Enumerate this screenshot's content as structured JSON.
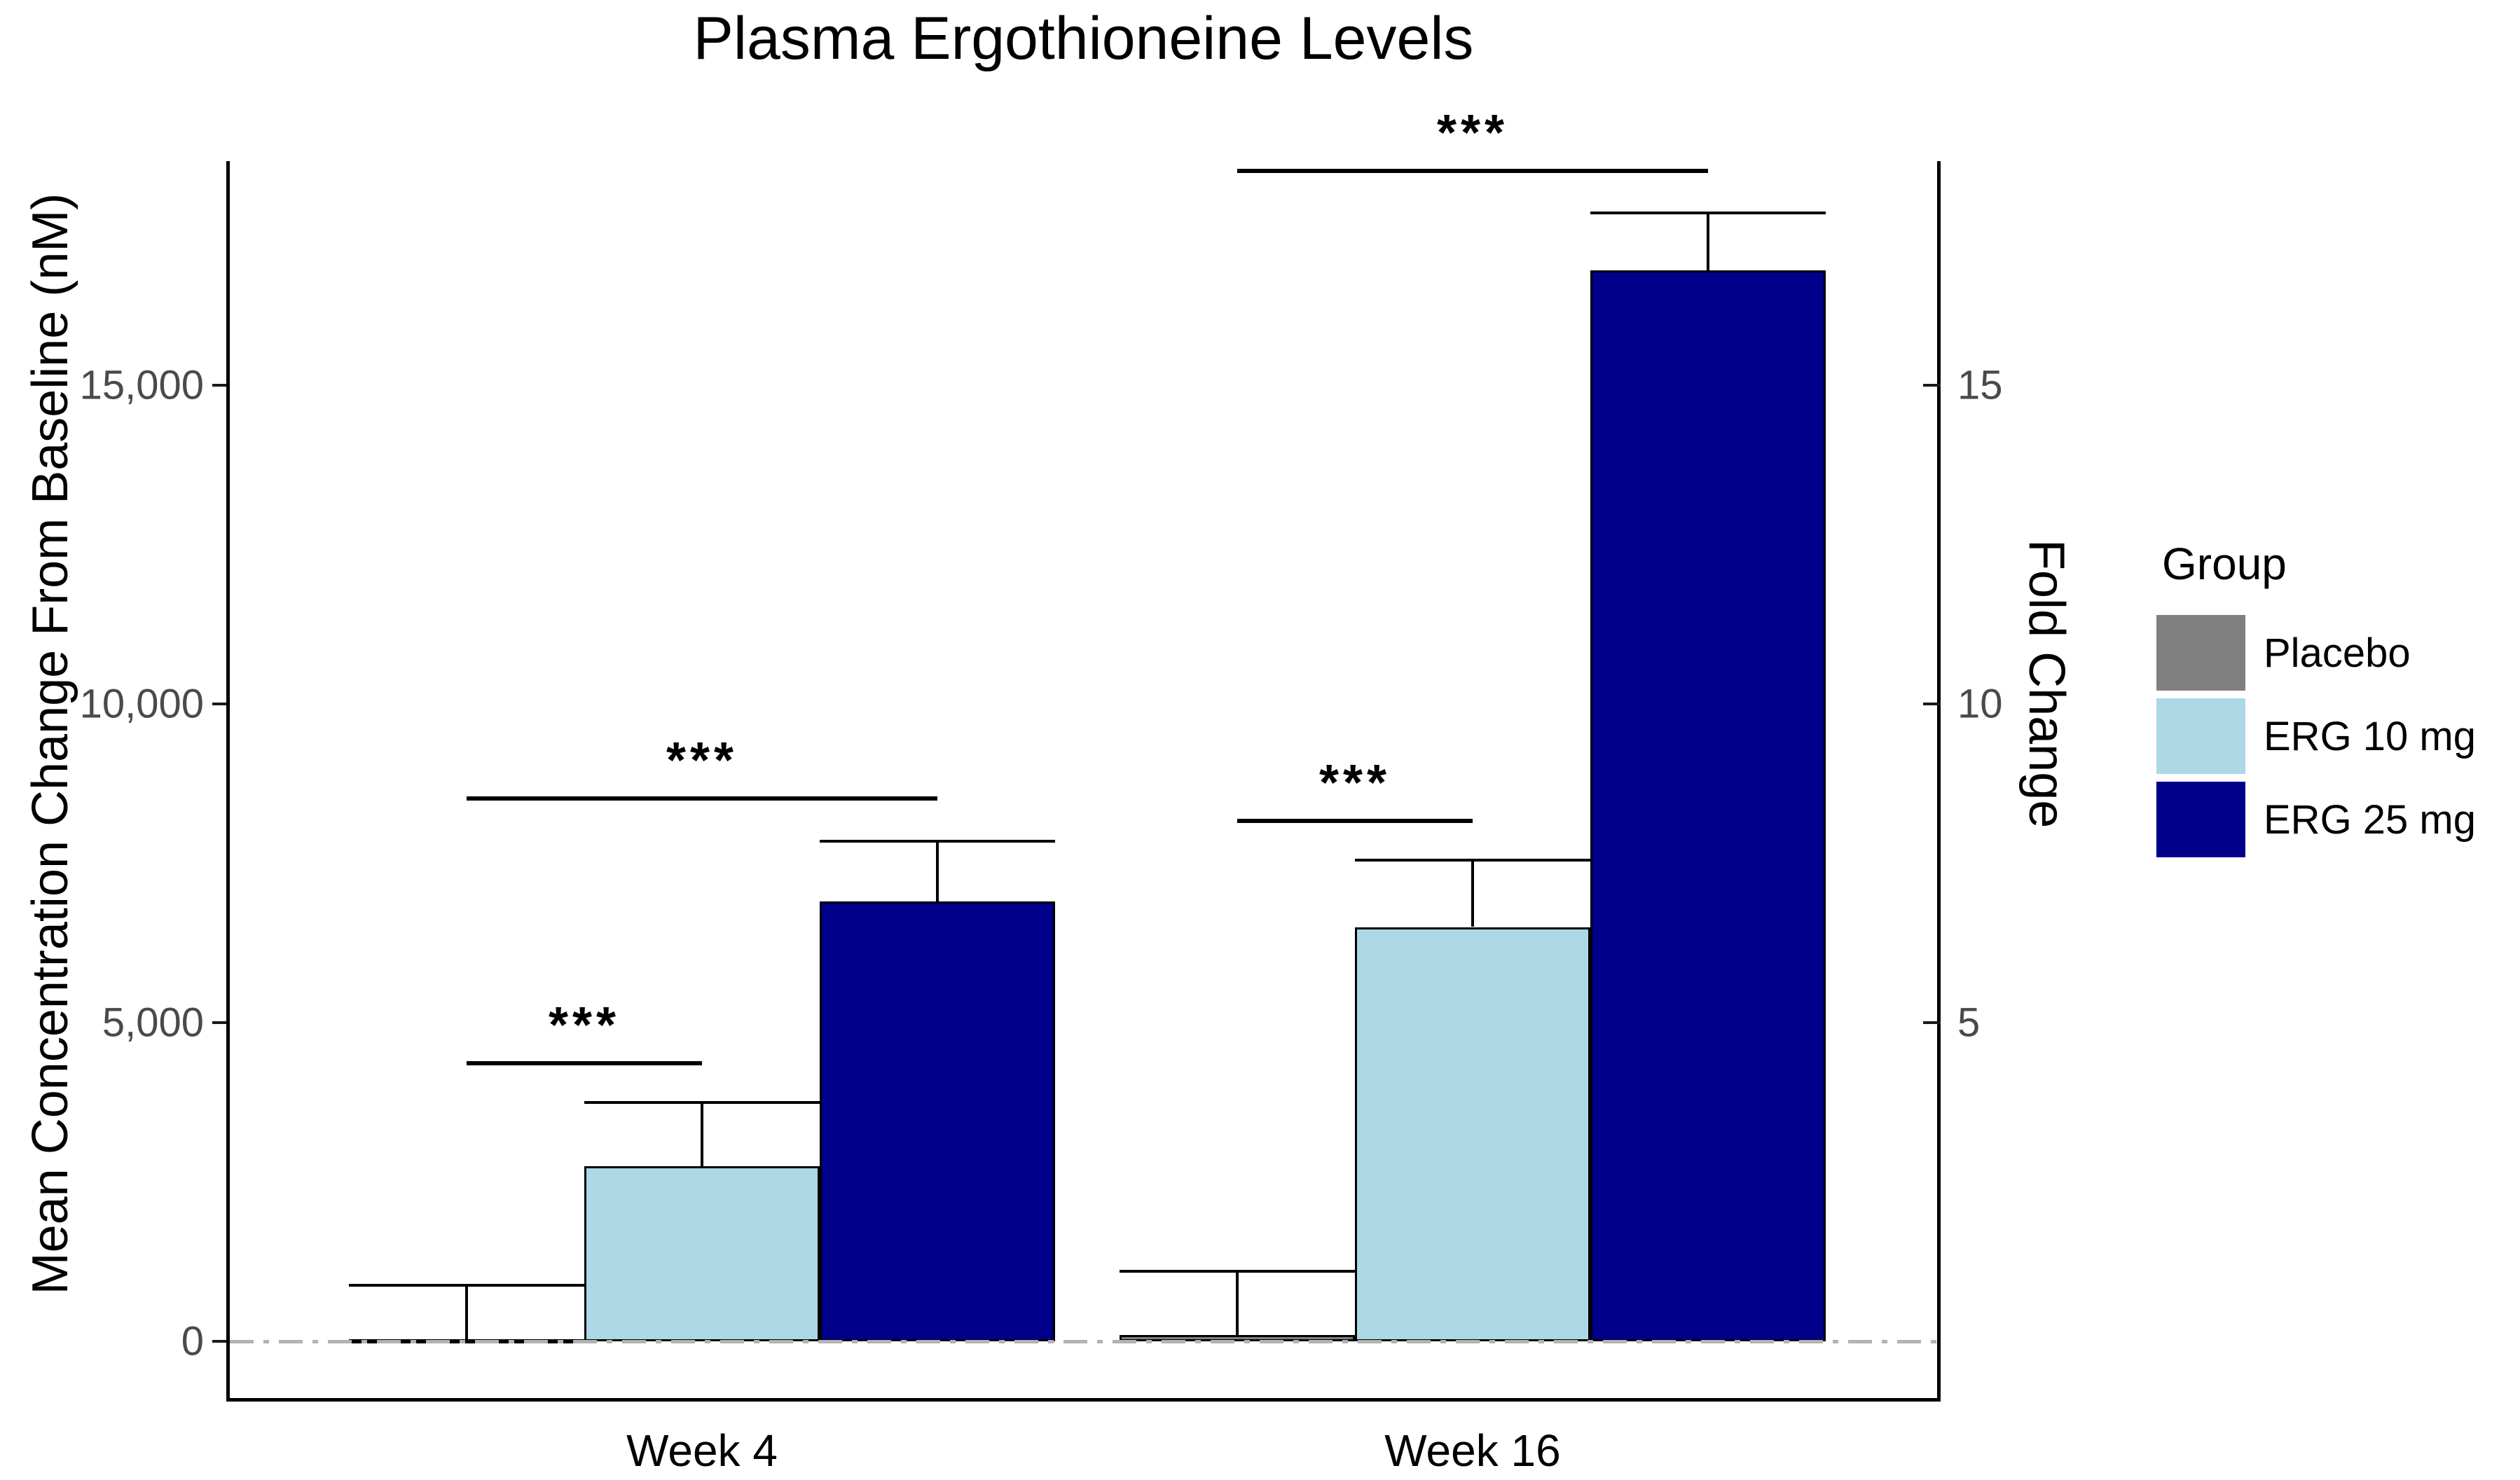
{
  "chart_data": {
    "type": "bar",
    "title": "Plasma Ergothioneine Levels",
    "categories": [
      "Week 4",
      "Week 16"
    ],
    "series": [
      {
        "name": "Placebo",
        "color": "#808080",
        "values": [
          30,
          100
        ],
        "errors_upper": [
          850,
          1000
        ]
      },
      {
        "name": "ERG 10 mg",
        "color": "#ADD8E6",
        "values": [
          2750,
          6500
        ],
        "errors_upper": [
          1000,
          1050
        ]
      },
      {
        "name": "ERG 25 mg",
        "color": "#00008B",
        "values": [
          6900,
          16800
        ],
        "errors_upper": [
          950,
          900
        ]
      }
    ],
    "xlabel": "",
    "ylabel": "Mean Concentration Change From Baseline (nM)",
    "y2label": "Fold Change",
    "ylim": [
      -900,
      18500
    ],
    "grid": false,
    "legend_position": "right",
    "y_axis_ticks": [
      {
        "value": 0,
        "label": "0"
      },
      {
        "value": 5000,
        "label": "5,000"
      },
      {
        "value": 10000,
        "label": "10,000"
      },
      {
        "value": 15000,
        "label": "15,000"
      }
    ],
    "y2_axis_ticks": [
      {
        "value": 5000,
        "label": "5"
      },
      {
        "value": 10000,
        "label": "10"
      },
      {
        "value": 15000,
        "label": "15"
      }
    ],
    "baseline": {
      "value": 0,
      "style": "dash-dot",
      "color": "#b3b3b3"
    },
    "significance": [
      {
        "category": "Week 4",
        "from": "Placebo",
        "to": "ERG 10 mg",
        "label": "***",
        "y": 4400
      },
      {
        "category": "Week 4",
        "from": "Placebo",
        "to": "ERG 25 mg",
        "label": "***",
        "y": 8550
      },
      {
        "category": "Week 16",
        "from": "Placebo",
        "to": "ERG 10 mg",
        "label": "***",
        "y": 8200
      },
      {
        "category": "Week 16",
        "from": "Placebo",
        "to": "ERG 25 mg",
        "label": "***",
        "y": 18400
      }
    ],
    "legend": {
      "title": "Group",
      "items": [
        {
          "label": "Placebo",
          "color": "#808080"
        },
        {
          "label": "ERG 10 mg",
          "color": "#ADD8E6"
        },
        {
          "label": "ERG 25 mg",
          "color": "#00008B"
        }
      ]
    }
  }
}
